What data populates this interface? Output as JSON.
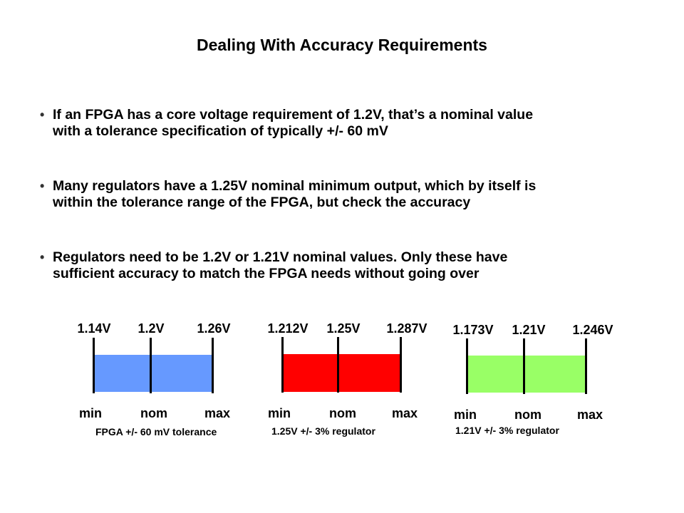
{
  "title": "Dealing With Accuracy Requirements",
  "bullets": [
    {
      "marker": "•",
      "lines": [
        "If an FPGA has a core voltage requirement of 1.2V, that’s a nominal value",
        "with a tolerance specification of typically +/- 60 mV"
      ]
    },
    {
      "marker": "•",
      "lines": [
        "Many regulators have a 1.25V nominal minimum output, which by itself is",
        "within the tolerance range of the FPGA, but check the accuracy"
      ]
    },
    {
      "marker": "•",
      "lines": [
        "Regulators need to be 1.2V or 1.21V nominal values. Only these have",
        "sufficient accuracy to match the FPGA needs without going over"
      ]
    }
  ],
  "bands": [
    {
      "min_value": "1.14V",
      "nom_value": "1.2V",
      "max_value": "1.26V",
      "min_word": "min",
      "nom_word": "nom",
      "max_word": "max",
      "caption": "FPGA +/- 60 mV tolerance",
      "color": "#6699ff"
    },
    {
      "min_value": "1.212V",
      "nom_value": "1.25V",
      "max_value": "1.287V",
      "min_word": "min",
      "nom_word": "nom",
      "max_word": "max",
      "caption": "1.25V +/- 3% regulator",
      "color": "#ff0000"
    },
    {
      "min_value": "1.173V",
      "nom_value": "1.21V",
      "max_value": "1.246V",
      "min_word": "min",
      "nom_word": "nom",
      "max_word": "max",
      "caption": "1.21V +/- 3% regulator",
      "color": "#99ff66"
    }
  ]
}
